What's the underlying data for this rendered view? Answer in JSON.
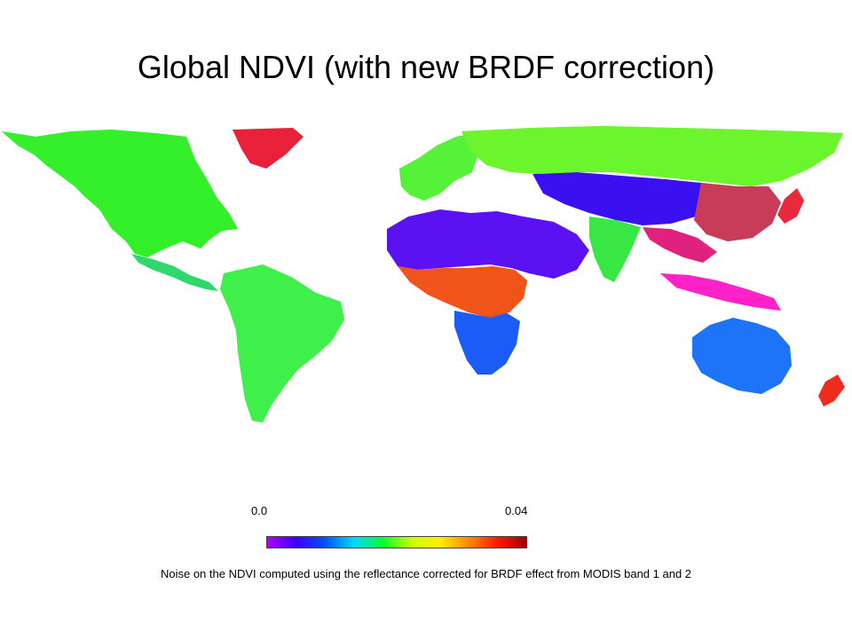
{
  "slide": {
    "title": "Global NDVI (with new BRDF correction)",
    "caption": "Noise on the NDVI computed using the reflectance corrected for BRDF effect  from MODIS band 1 and 2"
  },
  "colorbar": {
    "min_label": "0.0",
    "max_label": "0.04",
    "colors": [
      "#b000ff",
      "#3b00ff",
      "#0050ff",
      "#00d7ff",
      "#00ff33",
      "#c8ff00",
      "#ffee00",
      "#ff8800",
      "#ff1a00",
      "#a00000"
    ]
  },
  "map": {
    "regions": [
      {
        "name": "north-america",
        "noise_level": "high",
        "colors": [
          "#00ff33",
          "#c8ff00",
          "#ff1a00",
          "#00d7ff"
        ]
      },
      {
        "name": "greenland",
        "noise_level": "high",
        "colors": [
          "#ff1a00",
          "#ff00cc",
          "#c8ff00"
        ]
      },
      {
        "name": "central-america",
        "noise_level": "medium",
        "colors": [
          "#00ff33",
          "#3b00ff"
        ]
      },
      {
        "name": "south-america",
        "noise_level": "mixed",
        "colors": [
          "#00ff33",
          "#ff1a00",
          "#00d7ff",
          "#c8ff00"
        ]
      },
      {
        "name": "europe",
        "noise_level": "medium",
        "colors": [
          "#00ff33",
          "#c8ff00",
          "#00d7ff"
        ]
      },
      {
        "name": "russia",
        "noise_level": "medium",
        "colors": [
          "#00ff33",
          "#c8ff00",
          "#ff1a00"
        ]
      },
      {
        "name": "sahara-arabia",
        "noise_level": "low",
        "colors": [
          "#6a00ff",
          "#3b00ff",
          "#b000ff"
        ]
      },
      {
        "name": "central-africa",
        "noise_level": "high",
        "colors": [
          "#ff1a00",
          "#ffee00",
          "#00ff33"
        ]
      },
      {
        "name": "southern-africa",
        "noise_level": "low",
        "colors": [
          "#0050ff",
          "#00ff33",
          "#3b00ff"
        ]
      },
      {
        "name": "central-asia",
        "noise_level": "low",
        "colors": [
          "#3b00ff",
          "#0050ff",
          "#6a00ff"
        ]
      },
      {
        "name": "india",
        "noise_level": "medium",
        "colors": [
          "#00ff33",
          "#c8ff00"
        ]
      },
      {
        "name": "southeast-asia",
        "noise_level": "high",
        "colors": [
          "#ff1a00",
          "#ff00cc",
          "#c8ff00"
        ]
      },
      {
        "name": "australia",
        "noise_level": "low",
        "colors": [
          "#0050ff",
          "#00d7ff",
          "#00ff33"
        ]
      }
    ]
  }
}
